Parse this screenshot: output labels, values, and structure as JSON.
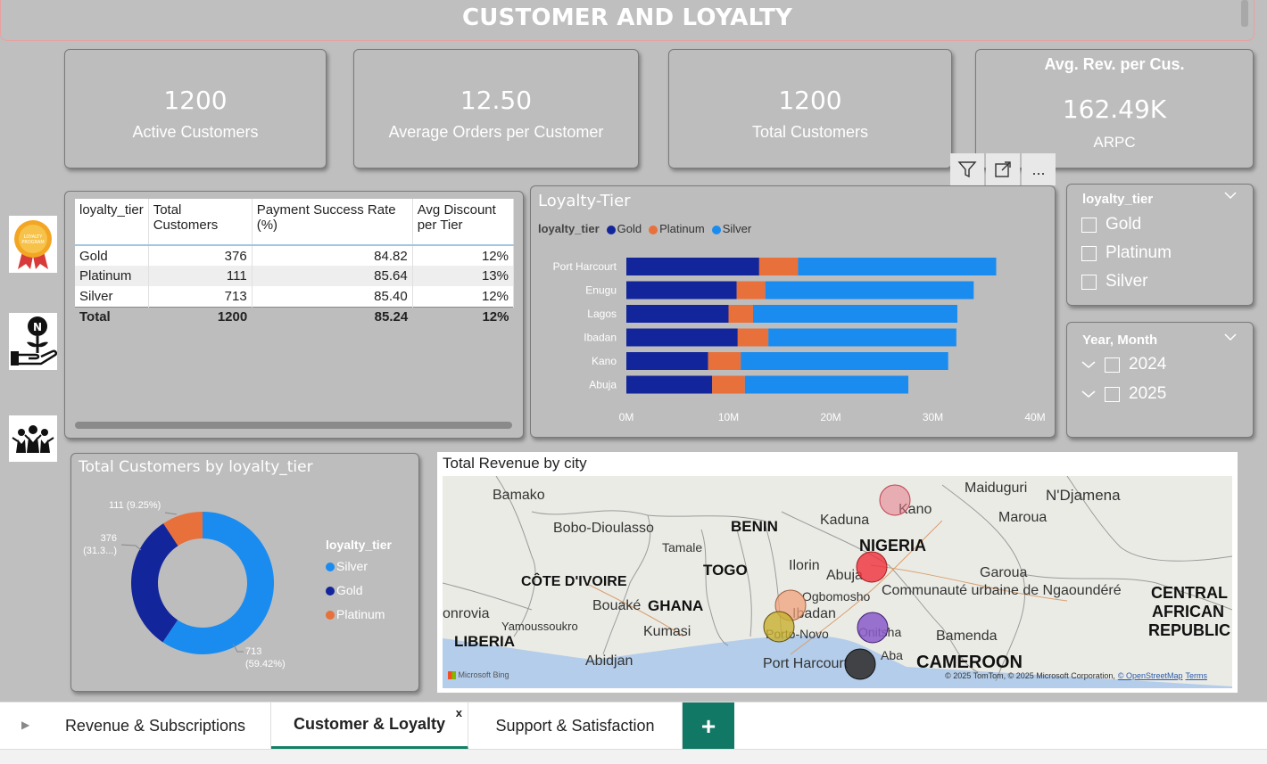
{
  "title": "CUSTOMER AND LOYALTY",
  "kpis": [
    {
      "value": "1200",
      "label": "Active Customers"
    },
    {
      "value": "12.50",
      "label": "Average Orders per Customer"
    },
    {
      "value": "1200",
      "label": "Total Customers"
    },
    {
      "header": "Avg. Rev. per Cus.",
      "value": "162.49K",
      "label": "ARPC"
    }
  ],
  "visual_tools": {
    "filter": "filter-icon",
    "focus": "focus-mode-icon",
    "more": "..."
  },
  "side_icons": [
    "loyalty-program-badge-icon",
    "naira-plant-hand-icon",
    "community-people-icon"
  ],
  "side_icon_text": {
    "loyalty": "LOYALTY",
    "program": "PROGRAM",
    "naira": "N"
  },
  "table": {
    "headers": [
      "loyalty_tier",
      "Total Customers",
      "Payment Success Rate (%)",
      "Avg Discount per Tier"
    ],
    "rows": [
      [
        "Gold",
        "376",
        "84.82",
        "12%"
      ],
      [
        "Platinum",
        "111",
        "85.64",
        "13%"
      ],
      [
        "Silver",
        "713",
        "85.40",
        "12%"
      ]
    ],
    "total": [
      "Total",
      "1200",
      "85.24",
      "12%"
    ]
  },
  "loyalty_chart": {
    "title": "Loyalty-Tier",
    "legend_title": "loyalty_tier",
    "legend": [
      "Gold",
      "Platinum",
      "Silver"
    ],
    "x_ticks": [
      "0M",
      "10M",
      "20M",
      "30M",
      "40M"
    ]
  },
  "chart_data": {
    "type": "bar",
    "orientation": "horizontal",
    "stacked": true,
    "title": "Loyalty-Tier",
    "categories": [
      "Port Harcourt",
      "Enugu",
      "Lagos",
      "Ibadan",
      "Kano",
      "Abuja"
    ],
    "series": [
      {
        "name": "Gold",
        "color": "#13259a",
        "values": [
          13.0,
          10.8,
          10.0,
          10.9,
          8.0,
          8.4
        ]
      },
      {
        "name": "Platinum",
        "color": "#e8703a",
        "values": [
          3.8,
          2.8,
          2.4,
          3.0,
          3.2,
          3.2
        ]
      },
      {
        "name": "Silver",
        "color": "#1a8cf0",
        "values": [
          19.4,
          20.4,
          20.0,
          18.4,
          20.3,
          16.0
        ]
      }
    ],
    "xlim": [
      0,
      40
    ],
    "x_unit": "M",
    "legend_position": "top-left"
  },
  "slicer_tier": {
    "title": "loyalty_tier",
    "options": [
      "Gold",
      "Platinum",
      "Silver"
    ]
  },
  "slicer_date": {
    "title": "Year, Month",
    "options": [
      "2024",
      "2025"
    ]
  },
  "donut": {
    "title": "Total Customers by loyalty_tier",
    "legend_title": "loyalty_tier",
    "slices": [
      {
        "name": "Silver",
        "value": 713,
        "label_a": "713",
        "label_b": "(59.42%)",
        "color": "#1a8cf0"
      },
      {
        "name": "Gold",
        "value": 376,
        "label_a": "376",
        "label_b": "(31.3...)",
        "color": "#13259a"
      },
      {
        "name": "Platinum",
        "value": 111,
        "label_a": "111 (9.25%)",
        "label_b": "",
        "color": "#e8703a"
      }
    ]
  },
  "map": {
    "title": "Total Revenue by city",
    "places": [
      "Bamako",
      "Bobo-Dioulasso",
      "BENIN",
      "Kaduna",
      "Maiduguri",
      "N'Djamena",
      "Kano",
      "Maroua",
      "NIGERIA",
      "Tamale",
      "TOGO",
      "Ilorin",
      "Abuja",
      "Garoua",
      "CÔTE D'IVOIRE",
      "Ogbomosho",
      "Communauté urbaine de Ngaoundéré",
      "CENTRAL",
      "AFRICAN",
      "REPUBLIC",
      "Bouaké",
      "GHANA",
      "Ibadan",
      "onrovia",
      "Yamoussoukro",
      "Porto-Novo",
      "Onitsha",
      "Bamenda",
      "LIBERIA",
      "Kumasi",
      "Abidjan",
      "Port Harcourt",
      "Aba",
      "CAMEROON"
    ],
    "bing": "Microsoft Bing",
    "credit": "© 2025 TomTom, © 2025 Microsoft Corporation,",
    "credit_osm": "© OpenStreetMap",
    "credit_terms": "Terms",
    "bubbles": [
      {
        "city": "Kano",
        "color": "#e57a86"
      },
      {
        "city": "Abuja",
        "color": "#f0303a"
      },
      {
        "city": "Ibadan",
        "color": "#f0a07a"
      },
      {
        "city": "Lagos",
        "color": "#c8b030"
      },
      {
        "city": "Enugu",
        "color": "#8a5ac8"
      },
      {
        "city": "Port Harcourt",
        "color": "#333333"
      }
    ]
  },
  "tabs": [
    {
      "label": "Revenue & Subscriptions"
    },
    {
      "label": "Customer & Loyalty",
      "close": "x"
    },
    {
      "label": "Support & Satisfaction"
    }
  ],
  "add_tab": "+"
}
